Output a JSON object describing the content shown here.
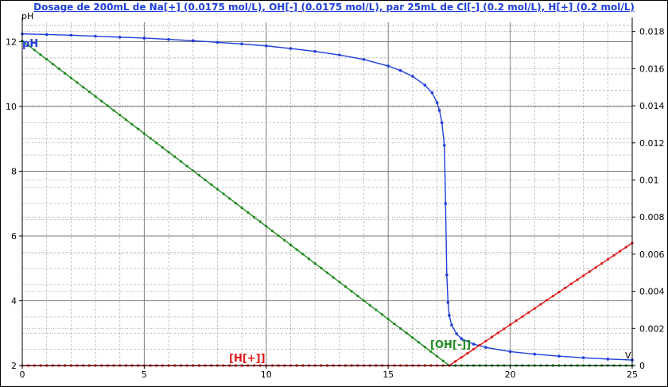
{
  "chart_data": {
    "type": "line",
    "title": "Dosage de 200mL de Na[+] (0.0175 mol/L), OH[-] (0.0175 mol/L),  par 25mL  de Cl[-] (0.2 mol/L), H[+] (0.2 mol/L)",
    "xlabel": "V",
    "ylabel_left": "pH",
    "xlim": [
      0,
      25
    ],
    "ylim_left": [
      2,
      12.6
    ],
    "ylim_right": [
      0,
      0.0185
    ],
    "x_ticks": [
      "0",
      "5",
      "10",
      "15",
      "20",
      "25"
    ],
    "y_left_ticks": [
      "2",
      "4",
      "6",
      "8",
      "10",
      "12"
    ],
    "y_right_ticks": [
      "0",
      "0.002",
      "0.004",
      "0.006",
      "0.008",
      "0.01",
      "0.012",
      "0.014",
      "0.016",
      "0.018"
    ],
    "grid": true,
    "colors": {
      "pH": "#1f3fd9",
      "OH": "#1f8a1f",
      "H": "#e01818",
      "title": "#1f3fd9"
    },
    "series": [
      {
        "name": "pH",
        "axis": "left",
        "x": [
          0,
          1,
          2,
          3,
          4,
          5,
          6,
          7,
          8,
          9,
          10,
          11,
          12,
          13,
          14,
          15,
          15.5,
          16,
          16.5,
          16.8,
          17,
          17.1,
          17.2,
          17.3,
          17.35,
          17.4,
          17.45,
          17.5,
          17.6,
          17.8,
          18,
          18.5,
          19,
          20,
          21,
          22,
          23,
          24,
          25
        ],
        "values": [
          12.24,
          12.22,
          12.2,
          12.17,
          12.14,
          12.11,
          12.07,
          12.03,
          11.98,
          11.93,
          11.87,
          11.79,
          11.7,
          11.59,
          11.45,
          11.25,
          11.11,
          10.93,
          10.66,
          10.42,
          10.12,
          9.88,
          9.5,
          8.8,
          7.0,
          4.8,
          3.95,
          3.55,
          3.25,
          2.98,
          2.83,
          2.66,
          2.56,
          2.43,
          2.35,
          2.29,
          2.24,
          2.2,
          2.17
        ]
      },
      {
        "name": "[OH[-]]",
        "axis": "right",
        "x": [
          0,
          17.5,
          25
        ],
        "values": [
          0.0175,
          0.0,
          0.0
        ]
      },
      {
        "name": "[H[+]]",
        "axis": "right",
        "x": [
          0,
          17.5,
          25
        ],
        "values": [
          0.0,
          0.0,
          0.0066
        ]
      }
    ]
  }
}
